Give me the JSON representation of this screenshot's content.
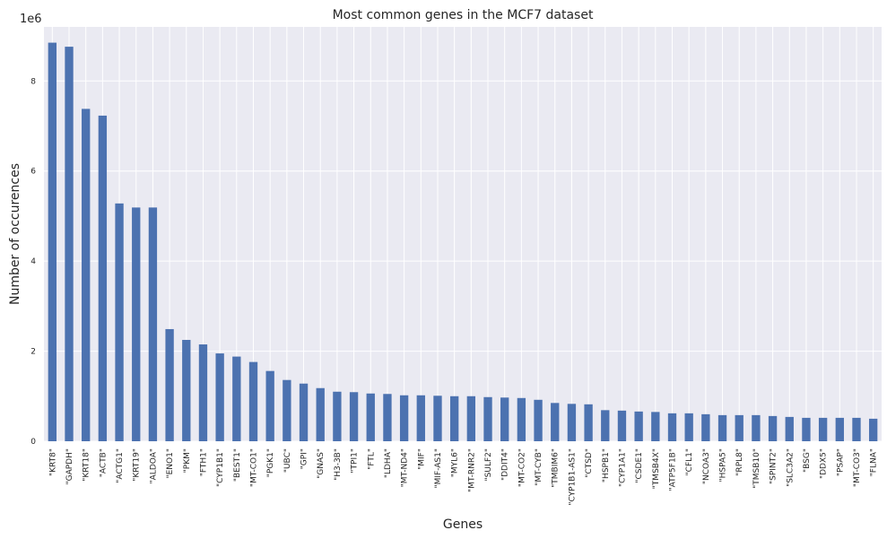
{
  "chart_data": {
    "type": "bar",
    "title": "Most common genes in the MCF7 dataset",
    "xlabel": "Genes",
    "ylabel": "Number of occurences",
    "y_offset_label": "1e6",
    "y_ticks": [
      "0",
      "2",
      "4",
      "6",
      "8"
    ],
    "ylim": [
      0,
      9.2
    ],
    "grid": true,
    "bar_color": "#4c72b0",
    "background_color": "#eaeaf2",
    "grid_color": "#ffffff",
    "categories": [
      "\"KRT8\"",
      "\"GAPDH\"",
      "\"KRT18\"",
      "\"ACTB\"",
      "\"ACTG1\"",
      "\"KRT19\"",
      "\"ALDOA\"",
      "\"ENO1\"",
      "\"PKM\"",
      "\"FTH1\"",
      "\"CYP1B1\"",
      "\"BEST1\"",
      "\"MT-CO1\"",
      "\"PGK1\"",
      "\"UBC\"",
      "\"GPI\"",
      "\"GNAS\"",
      "\"H3-3B\"",
      "\"TPI1\"",
      "\"FTL\"",
      "\"LDHA\"",
      "\"MT-ND4\"",
      "\"MIF\"",
      "\"MIF-AS1\"",
      "\"MYL6\"",
      "\"MT-RNR2\"",
      "\"SULF2\"",
      "\"DDIT4\"",
      "\"MT-CO2\"",
      "\"MT-CYB\"",
      "\"TMBIM6\"",
      "\"CYP1B1-AS1\"",
      "\"CTSD\"",
      "\"HSPB1\"",
      "\"CYP1A1\"",
      "\"CSDE1\"",
      "\"TMSB4X\"",
      "\"ATP5F1B\"",
      "\"CFL1\"",
      "\"NCOA3\"",
      "\"HSPA5\"",
      "\"RPL8\"",
      "\"TMSB10\"",
      "\"SPINT2\"",
      "\"SLC3A2\"",
      "\"BSG\"",
      "\"DDX5\"",
      "\"PSAP\"",
      "\"MT-CO3\"",
      "\"FLNA\""
    ],
    "values": [
      8.85,
      8.76,
      7.38,
      7.23,
      5.28,
      5.19,
      5.19,
      2.49,
      2.25,
      2.15,
      1.95,
      1.88,
      1.76,
      1.56,
      1.36,
      1.28,
      1.18,
      1.1,
      1.09,
      1.06,
      1.05,
      1.02,
      1.02,
      1.01,
      1.0,
      1.0,
      0.98,
      0.97,
      0.96,
      0.92,
      0.85,
      0.83,
      0.82,
      0.69,
      0.68,
      0.66,
      0.65,
      0.62,
      0.62,
      0.6,
      0.58,
      0.58,
      0.58,
      0.56,
      0.54,
      0.52,
      0.52,
      0.52,
      0.52,
      0.5
    ]
  }
}
